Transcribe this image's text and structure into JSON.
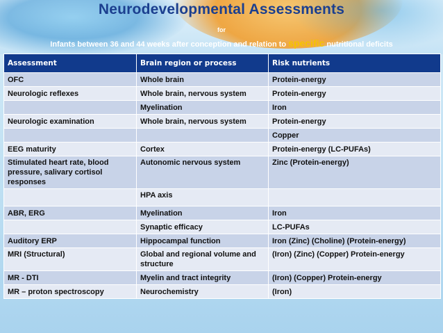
{
  "header": {
    "title": "Neurodevelopmental Assessments",
    "for": "for",
    "subtitle_before": "Infants between 36 and 44 weeks after conception and relation to ",
    "subtitle_highlight": "specific",
    "subtitle_after": " nutritional deficits"
  },
  "table": {
    "headers": [
      "Assessment",
      "Brain region or process",
      "Risk nutrients"
    ],
    "rows": [
      [
        "OFC",
        "Whole brain",
        "Protein-energy"
      ],
      [
        "Neurologic reflexes",
        "Whole brain, nervous system",
        "Protein-energy"
      ],
      [
        "",
        "Myelination",
        "Iron"
      ],
      [
        "Neurologic examination",
        "Whole brain, nervous system",
        "Protein-energy"
      ],
      [
        "",
        "",
        "Copper"
      ],
      [
        "EEG maturity",
        "Cortex",
        "Protein-energy (LC-PUFAs)"
      ],
      [
        "Stimulated heart rate, blood pressure, salivary cortisol responses",
        "Autonomic nervous system",
        "Zinc (Protein-energy)"
      ],
      [
        "",
        "HPA axis",
        ""
      ],
      [
        "ABR, ERG",
        "Myelination",
        "Iron"
      ],
      [
        "",
        "Synaptic efficacy",
        "LC-PUFAs"
      ],
      [
        "Auditory ERP",
        "Hippocampal function",
        "Iron (Zinc) (Choline) (Protein-energy)"
      ],
      [
        "MRI (Structural)",
        "Global and regional volume and structure",
        "(Iron) (Zinc) (Copper) Protein-energy"
      ],
      [
        "MR - DTI",
        "Myelin and tract integrity",
        "(Iron) (Copper) Protein-energy"
      ],
      [
        "MR – proton spectroscopy",
        "Neurochemistry",
        "(Iron)"
      ]
    ]
  },
  "colors": {
    "header_bg": "#113a8c",
    "row_dark": "#c8d3e8",
    "row_light": "#e5eaf4",
    "title": "#1b3f8f",
    "highlight": "#f5c400"
  }
}
